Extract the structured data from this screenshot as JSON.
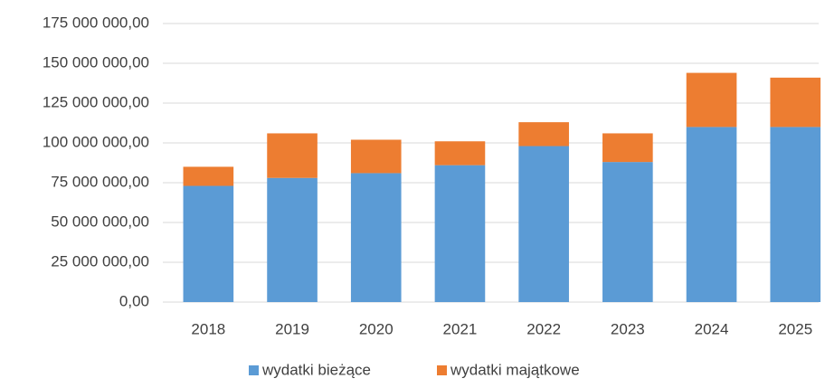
{
  "chart_data": {
    "type": "stacked_bar",
    "categories": [
      "2018",
      "2019",
      "2020",
      "2021",
      "2022",
      "2023",
      "2024",
      "2025"
    ],
    "series": [
      {
        "name": "wydatki bieżące",
        "color": "#5b9bd5",
        "values": [
          73000000,
          78000000,
          81000000,
          86000000,
          98000000,
          88000000,
          110000000,
          110000000
        ]
      },
      {
        "name": "wydatki majątkowe",
        "color": "#ed7d31",
        "values": [
          12000000,
          28000000,
          21000000,
          15000000,
          15000000,
          18000000,
          34000000,
          31000000
        ]
      }
    ],
    "ylim": [
      0,
      175000000
    ],
    "yticks": [
      {
        "value": 0,
        "label": "0,00"
      },
      {
        "value": 25000000,
        "label": "25 000 000,00"
      },
      {
        "value": 50000000,
        "label": "50 000 000,00"
      },
      {
        "value": 75000000,
        "label": "75 000 000,00"
      },
      {
        "value": 100000000,
        "label": "100 000 000,00"
      },
      {
        "value": 125000000,
        "label": "125 000 000,00"
      },
      {
        "value": 150000000,
        "label": "150 000 000,00"
      },
      {
        "value": 175000000,
        "label": "175 000 000,00"
      }
    ],
    "grid": true,
    "legend": "bottom"
  }
}
